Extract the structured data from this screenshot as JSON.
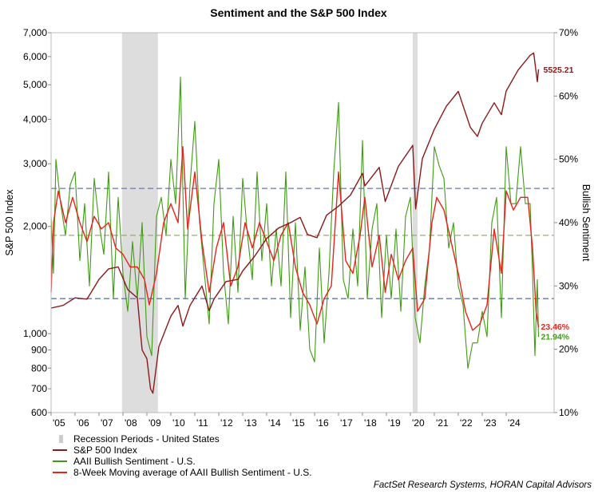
{
  "chart_data": {
    "type": "line",
    "title": "Sentiment and the S&P 500 Index",
    "ylabel_left": "S&P 500 Index",
    "ylabel_right": "Bullish Sentiment",
    "y_left": {
      "scale": "log",
      "min": 600,
      "max": 7000,
      "ticks": [
        600,
        700,
        800,
        900,
        1000,
        2000,
        3000,
        4000,
        5000,
        6000,
        7000
      ],
      "tick_labels": [
        "600",
        "700",
        "800",
        "900",
        "1,000",
        "2,000",
        "3,000",
        "4,000",
        "5,000",
        "6,000",
        "7,000"
      ]
    },
    "y_right": {
      "scale": "linear",
      "min": 10,
      "max": 70,
      "ticks": [
        10,
        20,
        30,
        40,
        50,
        60,
        70
      ],
      "tick_labels": [
        "10%",
        "20%",
        "30%",
        "40%",
        "50%",
        "60%",
        "70%"
      ]
    },
    "x": {
      "min": 2005,
      "max": 2026,
      "ticks": [
        2005,
        2006,
        2007,
        2008,
        2009,
        2010,
        2011,
        2012,
        2013,
        2014,
        2015,
        2016,
        2017,
        2018,
        2019,
        2020,
        2021,
        2022,
        2023,
        2024
      ],
      "tick_labels": [
        "'05",
        "'06",
        "'07",
        "'08",
        "'09",
        "'10",
        "'11",
        "'12",
        "'13",
        "'14",
        "'15",
        "'16",
        "'17",
        "'18",
        "'19",
        "'20",
        "'21",
        "'22",
        "'23",
        "'24"
      ]
    },
    "grid": "off",
    "recessions": [
      {
        "start": 2007.96,
        "end": 2009.46
      },
      {
        "start": 2020.1,
        "end": 2020.3
      }
    ],
    "reference_lines": [
      {
        "value": 45.4,
        "color": "#6677aa",
        "axis": "right"
      },
      {
        "value": 38.0,
        "color": "#99aa77",
        "axis": "right"
      },
      {
        "value": 28.0,
        "color": "#6677aa",
        "axis": "right"
      }
    ],
    "series": [
      {
        "name": "S&P 500 Index",
        "axis": "left",
        "color": "#8b1a1a",
        "points": [
          [
            2005.0,
            1180
          ],
          [
            2005.5,
            1200
          ],
          [
            2006.0,
            1260
          ],
          [
            2006.5,
            1250
          ],
          [
            2007.0,
            1420
          ],
          [
            2007.4,
            1520
          ],
          [
            2007.8,
            1540
          ],
          [
            2008.2,
            1330
          ],
          [
            2008.6,
            1260
          ],
          [
            2008.8,
            900
          ],
          [
            2009.0,
            850
          ],
          [
            2009.15,
            700
          ],
          [
            2009.25,
            680
          ],
          [
            2009.5,
            920
          ],
          [
            2010.0,
            1120
          ],
          [
            2010.3,
            1200
          ],
          [
            2010.5,
            1050
          ],
          [
            2010.8,
            1200
          ],
          [
            2011.3,
            1360
          ],
          [
            2011.6,
            1160
          ],
          [
            2011.8,
            1250
          ],
          [
            2012.3,
            1400
          ],
          [
            2012.8,
            1420
          ],
          [
            2013.0,
            1500
          ],
          [
            2013.5,
            1650
          ],
          [
            2014.0,
            1850
          ],
          [
            2014.5,
            1980
          ],
          [
            2015.0,
            2050
          ],
          [
            2015.4,
            2120
          ],
          [
            2015.7,
            1900
          ],
          [
            2016.1,
            1860
          ],
          [
            2016.5,
            2150
          ],
          [
            2017.0,
            2280
          ],
          [
            2017.5,
            2450
          ],
          [
            2018.0,
            2820
          ],
          [
            2018.1,
            2600
          ],
          [
            2018.7,
            2930
          ],
          [
            2018.95,
            2350
          ],
          [
            2019.5,
            2950
          ],
          [
            2020.1,
            3380
          ],
          [
            2020.22,
            2240
          ],
          [
            2020.5,
            3100
          ],
          [
            2021.0,
            3750
          ],
          [
            2021.5,
            4350
          ],
          [
            2022.0,
            4790
          ],
          [
            2022.5,
            3800
          ],
          [
            2022.8,
            3580
          ],
          [
            2023.0,
            3900
          ],
          [
            2023.5,
            4450
          ],
          [
            2023.8,
            4120
          ],
          [
            2024.0,
            4800
          ],
          [
            2024.5,
            5500
          ],
          [
            2025.0,
            6050
          ],
          [
            2025.15,
            6140
          ],
          [
            2025.3,
            5100
          ],
          [
            2025.35,
            5525
          ]
        ]
      },
      {
        "name": "AAII Bullish Sentiment - U.S.",
        "axis": "right",
        "color": "#3e9b13",
        "last_value": 21.94,
        "last_label": "21.94%",
        "points": [
          [
            2005.0,
            41
          ],
          [
            2005.1,
            32
          ],
          [
            2005.2,
            50
          ],
          [
            2005.4,
            43
          ],
          [
            2005.6,
            38
          ],
          [
            2005.8,
            46
          ],
          [
            2006.0,
            48
          ],
          [
            2006.2,
            34
          ],
          [
            2006.4,
            43
          ],
          [
            2006.6,
            30
          ],
          [
            2006.8,
            47
          ],
          [
            2007.0,
            40
          ],
          [
            2007.2,
            35
          ],
          [
            2007.4,
            48
          ],
          [
            2007.6,
            28
          ],
          [
            2007.8,
            44
          ],
          [
            2008.0,
            32
          ],
          [
            2008.2,
            26
          ],
          [
            2008.4,
            37
          ],
          [
            2008.6,
            28
          ],
          [
            2008.8,
            40
          ],
          [
            2009.0,
            22
          ],
          [
            2009.2,
            19
          ],
          [
            2009.4,
            41
          ],
          [
            2009.6,
            44
          ],
          [
            2009.8,
            38
          ],
          [
            2010.0,
            50
          ],
          [
            2010.2,
            43
          ],
          [
            2010.4,
            63
          ],
          [
            2010.6,
            28
          ],
          [
            2010.8,
            46
          ],
          [
            2011.0,
            56
          ],
          [
            2011.2,
            40
          ],
          [
            2011.4,
            32
          ],
          [
            2011.6,
            24
          ],
          [
            2011.8,
            43
          ],
          [
            2012.0,
            50
          ],
          [
            2012.2,
            32
          ],
          [
            2012.4,
            24
          ],
          [
            2012.6,
            41
          ],
          [
            2012.8,
            29
          ],
          [
            2013.0,
            47
          ],
          [
            2013.2,
            38
          ],
          [
            2013.4,
            31
          ],
          [
            2013.6,
            48
          ],
          [
            2013.8,
            34
          ],
          [
            2014.0,
            43
          ],
          [
            2014.2,
            30
          ],
          [
            2014.4,
            39
          ],
          [
            2014.6,
            30
          ],
          [
            2014.8,
            48
          ],
          [
            2015.0,
            25
          ],
          [
            2015.2,
            40
          ],
          [
            2015.4,
            23
          ],
          [
            2015.6,
            33
          ],
          [
            2015.8,
            20
          ],
          [
            2016.0,
            18
          ],
          [
            2016.2,
            36
          ],
          [
            2016.4,
            21
          ],
          [
            2016.6,
            32
          ],
          [
            2016.8,
            48
          ],
          [
            2017.0,
            59
          ],
          [
            2017.2,
            31
          ],
          [
            2017.4,
            28
          ],
          [
            2017.6,
            39
          ],
          [
            2017.8,
            30
          ],
          [
            2018.0,
            53
          ],
          [
            2018.2,
            28
          ],
          [
            2018.4,
            39
          ],
          [
            2018.6,
            43
          ],
          [
            2018.8,
            25
          ],
          [
            2019.0,
            38
          ],
          [
            2019.2,
            28
          ],
          [
            2019.4,
            39
          ],
          [
            2019.6,
            26
          ],
          [
            2019.8,
            41
          ],
          [
            2020.0,
            44
          ],
          [
            2020.2,
            25
          ],
          [
            2020.4,
            21
          ],
          [
            2020.6,
            30
          ],
          [
            2020.8,
            36
          ],
          [
            2021.0,
            52
          ],
          [
            2021.2,
            49
          ],
          [
            2021.4,
            47
          ],
          [
            2021.6,
            36
          ],
          [
            2021.8,
            40
          ],
          [
            2022.0,
            30
          ],
          [
            2022.2,
            27
          ],
          [
            2022.4,
            17
          ],
          [
            2022.6,
            21
          ],
          [
            2022.8,
            21
          ],
          [
            2023.0,
            26
          ],
          [
            2023.2,
            22
          ],
          [
            2023.4,
            40
          ],
          [
            2023.6,
            44
          ],
          [
            2023.8,
            25
          ],
          [
            2024.0,
            52
          ],
          [
            2024.2,
            43
          ],
          [
            2024.4,
            43
          ],
          [
            2024.6,
            52
          ],
          [
            2024.8,
            43
          ],
          [
            2025.0,
            43
          ],
          [
            2025.1,
            32
          ],
          [
            2025.2,
            19
          ],
          [
            2025.3,
            31
          ],
          [
            2025.35,
            21.94
          ]
        ]
      },
      {
        "name": "8-Week Moving average of AAII Bullish Sentiment - U.S.",
        "axis": "right",
        "color": "#e8231b",
        "last_value": 23.46,
        "last_label": "23.46%",
        "points": [
          [
            2005.0,
            29
          ],
          [
            2005.1,
            40
          ],
          [
            2005.3,
            45
          ],
          [
            2005.6,
            40
          ],
          [
            2005.9,
            44
          ],
          [
            2006.2,
            40
          ],
          [
            2006.5,
            37
          ],
          [
            2006.8,
            41
          ],
          [
            2007.1,
            39
          ],
          [
            2007.4,
            40
          ],
          [
            2007.7,
            36
          ],
          [
            2008.0,
            35
          ],
          [
            2008.3,
            33
          ],
          [
            2008.6,
            33
          ],
          [
            2008.9,
            31
          ],
          [
            2009.1,
            27
          ],
          [
            2009.4,
            32
          ],
          [
            2009.7,
            40
          ],
          [
            2010.0,
            43
          ],
          [
            2010.3,
            40
          ],
          [
            2010.5,
            52
          ],
          [
            2010.7,
            39
          ],
          [
            2011.0,
            48
          ],
          [
            2011.3,
            37
          ],
          [
            2011.6,
            29
          ],
          [
            2011.9,
            36
          ],
          [
            2012.2,
            40
          ],
          [
            2012.5,
            30
          ],
          [
            2012.8,
            33
          ],
          [
            2013.1,
            40
          ],
          [
            2013.4,
            36
          ],
          [
            2013.7,
            40
          ],
          [
            2014.0,
            37
          ],
          [
            2014.3,
            34
          ],
          [
            2014.6,
            38
          ],
          [
            2014.9,
            40
          ],
          [
            2015.2,
            33
          ],
          [
            2015.5,
            29
          ],
          [
            2015.8,
            27
          ],
          [
            2016.1,
            24
          ],
          [
            2016.4,
            28
          ],
          [
            2016.7,
            30
          ],
          [
            2017.0,
            48
          ],
          [
            2017.3,
            34
          ],
          [
            2017.6,
            32
          ],
          [
            2017.9,
            38
          ],
          [
            2018.1,
            44
          ],
          [
            2018.4,
            33
          ],
          [
            2018.7,
            38
          ],
          [
            2018.95,
            29
          ],
          [
            2019.2,
            35
          ],
          [
            2019.5,
            31
          ],
          [
            2019.8,
            34
          ],
          [
            2020.1,
            36
          ],
          [
            2020.3,
            26
          ],
          [
            2020.6,
            28
          ],
          [
            2020.9,
            40
          ],
          [
            2021.1,
            44
          ],
          [
            2021.4,
            42
          ],
          [
            2021.7,
            37
          ],
          [
            2022.0,
            32
          ],
          [
            2022.3,
            26
          ],
          [
            2022.6,
            23
          ],
          [
            2022.9,
            24
          ],
          [
            2023.2,
            27
          ],
          [
            2023.5,
            39
          ],
          [
            2023.8,
            32
          ],
          [
            2024.0,
            45
          ],
          [
            2024.3,
            42
          ],
          [
            2024.6,
            44
          ],
          [
            2024.9,
            44
          ],
          [
            2025.1,
            36
          ],
          [
            2025.25,
            26
          ],
          [
            2025.35,
            23.46
          ]
        ]
      }
    ],
    "annotations": [
      {
        "text": "5525.21",
        "series": "S&P 500 Index"
      }
    ],
    "legend": {
      "placement": "bottom-left",
      "entries": [
        {
          "label": "Recession Periods - United States",
          "color": "#cccccc",
          "symbol": "box"
        },
        {
          "label": "S&P 500 Index",
          "color": "#8b1a1a",
          "symbol": "line"
        },
        {
          "label": "AAII Bullish Sentiment - U.S.",
          "color": "#3e9b13",
          "symbol": "line"
        },
        {
          "label": "8-Week Moving average of AAII Bullish Sentiment - U.S.",
          "color": "#e8231b",
          "symbol": "line"
        }
      ]
    },
    "source": "FactSet Research Systems, HORAN Capital Advisors"
  }
}
